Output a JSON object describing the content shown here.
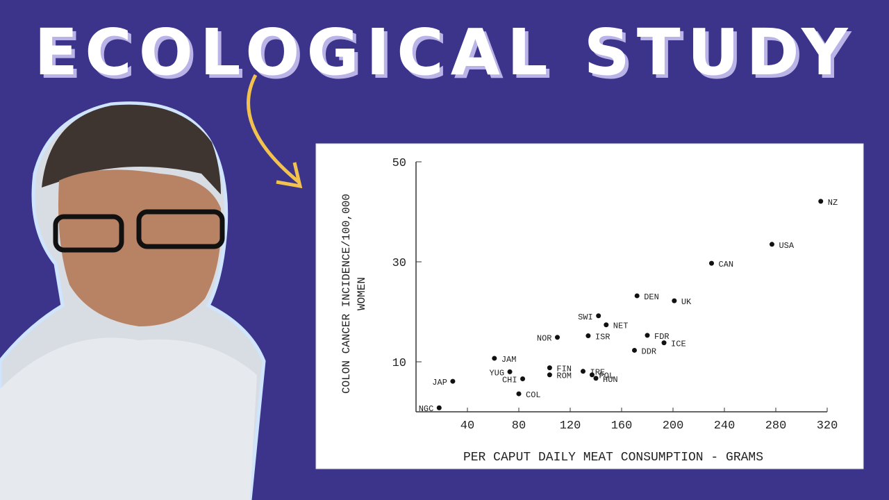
{
  "title": "ECOLOGICAL STUDY",
  "chart_data": {
    "type": "scatter",
    "xlabel": "PER CAPUT DAILY MEAT CONSUMPTION - GRAMS",
    "ylabel": [
      "COLON CANCER INCIDENCE/100,000",
      "WOMEN"
    ],
    "x": [
      28.6,
      18,
      61,
      73,
      83,
      80,
      104,
      104,
      110,
      134,
      130,
      137,
      140,
      142,
      148,
      172,
      180,
      170,
      193,
      201,
      230,
      277,
      315
    ],
    "values": [
      6.1,
      0.8,
      10.7,
      8,
      6.6,
      3.6,
      8.8,
      7.4,
      14.9,
      15.2,
      8.1,
      7.4,
      6.7,
      19.2,
      17.4,
      23.2,
      15.3,
      12.3,
      13.8,
      22.2,
      29.7,
      33.5,
      42.1
    ],
    "labels": [
      "JAP",
      "NGC",
      "JAM",
      "YUG",
      "CHI",
      "COL",
      "FIN",
      "ROM",
      "NOR",
      "ISR",
      "IRE",
      "POL",
      "HUN",
      "SWI",
      "NET",
      "DEN",
      "FDR",
      "DDR",
      "ICE",
      "UK",
      "CAN",
      "USA",
      "NZ"
    ],
    "color": "#111111",
    "xlim": [
      0,
      320
    ],
    "xticks": [
      40,
      80,
      120,
      160,
      200,
      240,
      280,
      320
    ],
    "ylim": [
      0,
      50
    ],
    "yticks": [
      10,
      30,
      50
    ]
  }
}
